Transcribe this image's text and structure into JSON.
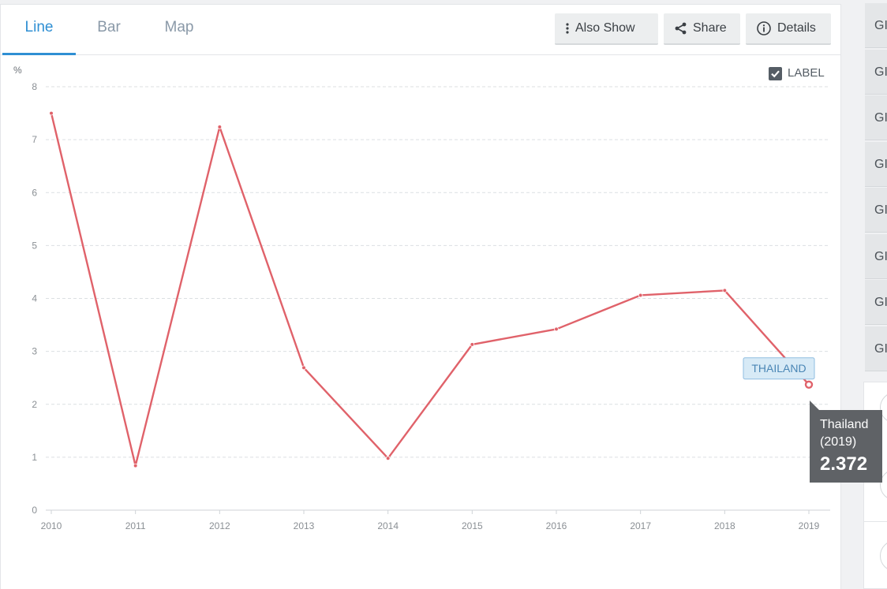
{
  "tabs": [
    {
      "label": "Line",
      "active": true
    },
    {
      "label": "Bar",
      "active": false
    },
    {
      "label": "Map",
      "active": false
    }
  ],
  "toolbar": {
    "also_show_label": "Also Show",
    "share_label": "Share",
    "details_label": "Details"
  },
  "label_toggle": {
    "text": "LABEL",
    "checked": true
  },
  "side_items": [
    "GI",
    "GI",
    "GI",
    "GI",
    "GI",
    "GI",
    "GI",
    "GI"
  ],
  "tooltip": {
    "name": "Thailand",
    "year": "(2019)",
    "value": "2.372"
  },
  "series_label": "THAILAND",
  "colors": {
    "line": "#e0626a",
    "accent": "#2f8fd3",
    "grid": "#dcdfe2",
    "axis_text": "#8a8f94"
  },
  "chart_data": {
    "type": "line",
    "ylabel": "%",
    "ylim": [
      0,
      8
    ],
    "yticks": [
      "0",
      "1",
      "2",
      "3",
      "4",
      "5",
      "6",
      "7",
      "8"
    ],
    "x": [
      "2010",
      "2011",
      "2012",
      "2013",
      "2014",
      "2015",
      "2016",
      "2017",
      "2018",
      "2019"
    ],
    "series": [
      {
        "name": "THAILAND",
        "values": [
          7.5,
          0.84,
          7.24,
          2.69,
          0.98,
          3.13,
          3.42,
          4.06,
          4.15,
          2.372
        ]
      }
    ],
    "grid": true,
    "highlight_index": 9
  }
}
